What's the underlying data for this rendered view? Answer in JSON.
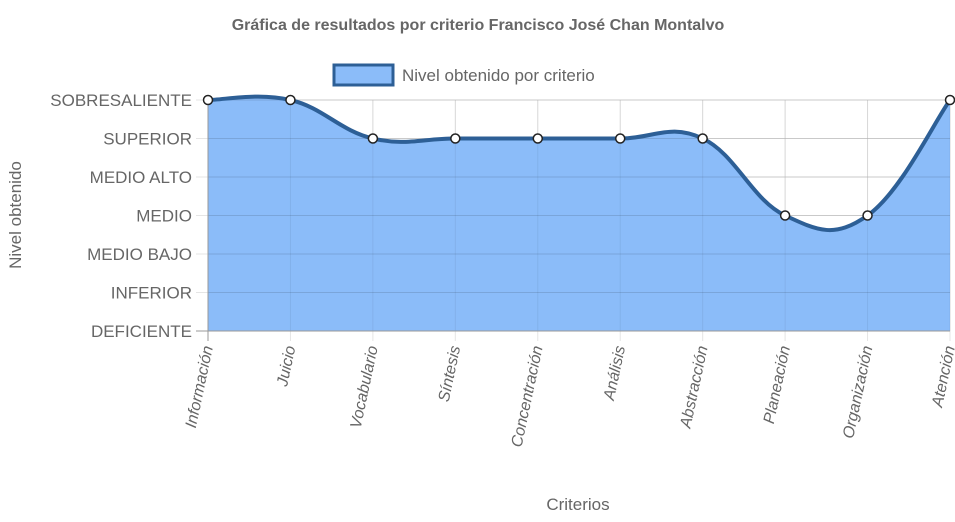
{
  "chart_data": {
    "type": "area",
    "title": "Gráfica de resultados por criterio Francisco José Chan Montalvo",
    "xlabel": "Criterios",
    "ylabel": "Nivel obtenido",
    "categories": [
      "Información",
      "Juicio",
      "Vocabulario",
      "Síntesis",
      "Concentración",
      "Análisis",
      "Abstracción",
      "Planeación",
      "Organización",
      "Atención"
    ],
    "y_levels": [
      "DEFICIENTE",
      "INFERIOR",
      "MEDIO BAJO",
      "MEDIO",
      "MEDIO ALTO",
      "SUPERIOR",
      "SOBRESALIENTE"
    ],
    "series": [
      {
        "name": "Nivel obtenido por criterio",
        "values": [
          "SOBRESALIENTE",
          "SOBRESALIENTE",
          "SUPERIOR",
          "SUPERIOR",
          "SUPERIOR",
          "SUPERIOR",
          "SUPERIOR",
          "MEDIO",
          "MEDIO",
          "SOBRESALIENTE"
        ]
      }
    ],
    "legend_position": "top",
    "grid": true,
    "colors": {
      "fill": "#8bbcf9",
      "line": "#2d5f96",
      "point_fill": "#ffffff",
      "point_stroke": "#222222",
      "grid": "#e5e5e5",
      "text": "#666666"
    }
  }
}
